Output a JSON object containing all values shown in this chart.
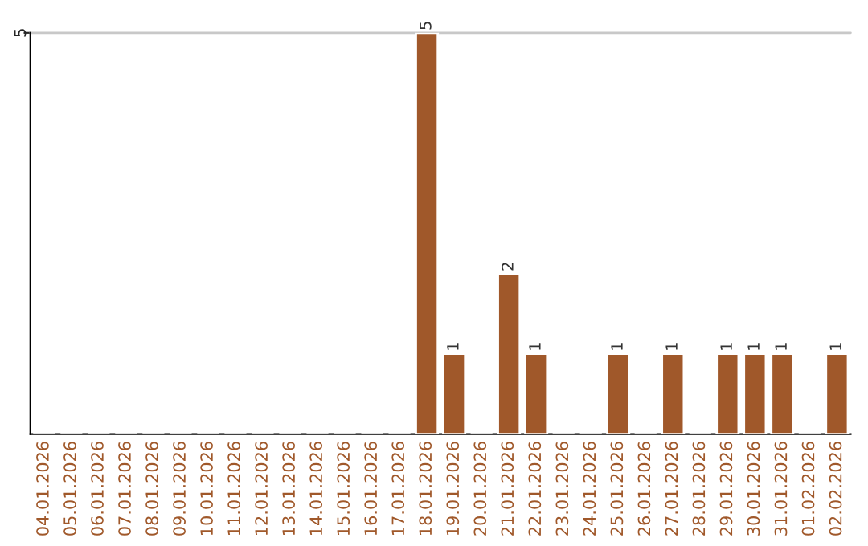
{
  "chart_data": {
    "type": "bar",
    "categories": [
      "04.01.2026",
      "05.01.2026",
      "06.01.2026",
      "07.01.2026",
      "08.01.2026",
      "09.01.2026",
      "10.01.2026",
      "11.01.2026",
      "12.01.2026",
      "13.01.2026",
      "14.01.2026",
      "15.01.2026",
      "16.01.2026",
      "17.01.2026",
      "18.01.2026",
      "19.01.2026",
      "20.01.2026",
      "21.01.2026",
      "22.01.2026",
      "23.01.2026",
      "24.01.2026",
      "25.01.2026",
      "26.01.2026",
      "27.01.2026",
      "28.01.2026",
      "29.01.2026",
      "30.01.2026",
      "31.01.2026",
      "01.02.2026",
      "02.02.2026"
    ],
    "values": [
      null,
      null,
      null,
      null,
      null,
      null,
      null,
      null,
      null,
      null,
      null,
      null,
      null,
      null,
      5,
      1,
      null,
      2,
      1,
      null,
      null,
      1,
      null,
      1,
      null,
      1,
      1,
      1,
      null,
      1
    ],
    "value_labels": [
      null,
      null,
      null,
      null,
      null,
      null,
      null,
      null,
      null,
      null,
      null,
      null,
      null,
      null,
      "5",
      "1",
      null,
      "2",
      "1",
      null,
      null,
      "1",
      null,
      "1",
      null,
      "1",
      "1",
      "1",
      null,
      "1"
    ],
    "color": "#a0582a",
    "ylim": [
      0,
      5
    ],
    "yticks": [
      5
    ],
    "ref_lines": [
      {
        "axis": "y",
        "value": 5,
        "color": "#c8c8c8"
      }
    ]
  }
}
